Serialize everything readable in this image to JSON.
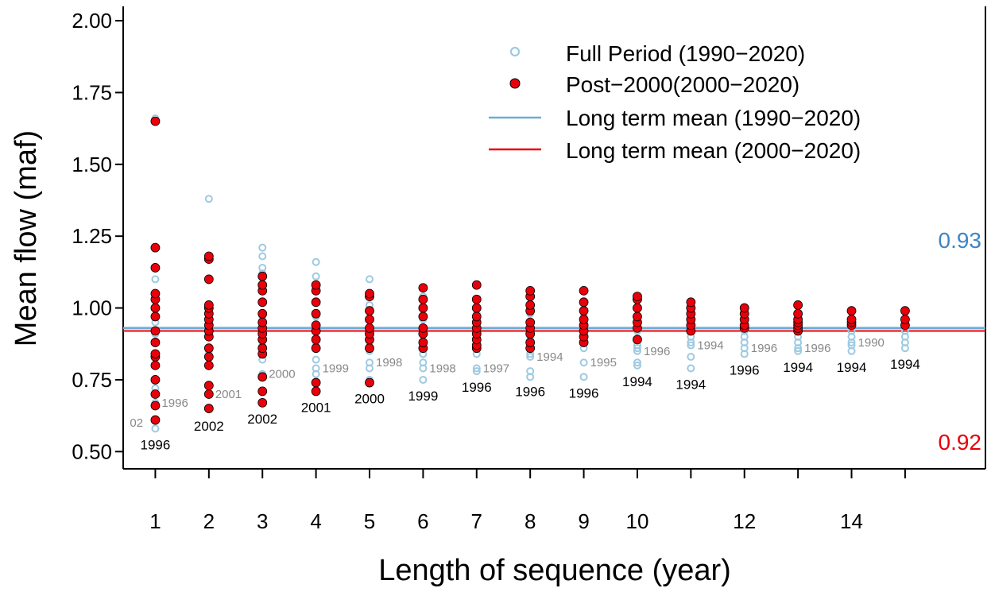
{
  "chart_data": {
    "type": "scatter",
    "xlabel": "Length of sequence (year)",
    "ylabel": "Mean flow (maf)",
    "xlim": [
      0.4,
      16.5
    ],
    "ylim": [
      0.44,
      2.05
    ],
    "x_ticks": [
      "1",
      "2",
      "3",
      "4",
      "5",
      "6",
      "7",
      "8",
      "9",
      "10",
      "12",
      "14"
    ],
    "x_tick_values": [
      1,
      2,
      3,
      4,
      5,
      6,
      7,
      8,
      9,
      10,
      12,
      14
    ],
    "y_ticks": [
      "0.50",
      "0.75",
      "1.00",
      "1.25",
      "1.50",
      "1.75",
      "2.00"
    ],
    "y_tick_values": [
      0.5,
      0.75,
      1.0,
      1.25,
      1.5,
      1.75,
      2.0
    ],
    "legend": [
      {
        "label": "Full Period (1990−2020)",
        "kind": "open-circle",
        "color": "#9ecae1"
      },
      {
        "label": "Post−2000(2000−2020)",
        "kind": "filled-circle",
        "color": "#e8000b"
      },
      {
        "label": "Long term mean (1990−2020)",
        "kind": "line",
        "color": "#6baed6"
      },
      {
        "label": "Long term mean (2000−2020)",
        "kind": "line",
        "color": "#e8000b"
      }
    ],
    "legend_position": "top-right",
    "colors": {
      "full": "#9ecae1",
      "post": "#e8000b",
      "full_mean": "#6baed6",
      "post_mean": "#e8000b",
      "full_mean_text": "#3d85c6"
    },
    "means": {
      "full_period": 0.93,
      "post_2000": 0.92,
      "full_label": "0.93",
      "post_label": "0.92"
    },
    "series": [
      {
        "name": "Full Period (1990−2020)",
        "points": [
          [
            1,
            [
              0.58,
              0.67,
              0.72,
              0.8,
              0.84,
              0.88,
              0.91,
              0.95,
              1.0,
              1.05,
              1.1,
              1.66
            ]
          ],
          [
            2,
            [
              0.7,
              0.8,
              0.85,
              0.9,
              0.95,
              1.0,
              1.17,
              1.38
            ]
          ],
          [
            3,
            [
              0.77,
              0.82,
              0.87,
              0.92,
              0.97,
              1.02,
              1.08,
              1.12,
              1.14,
              1.18,
              1.21
            ]
          ],
          [
            4,
            [
              0.77,
              0.79,
              0.82,
              0.87,
              0.92,
              0.97,
              1.02,
              1.07,
              1.11,
              1.16
            ]
          ],
          [
            5,
            [
              0.75,
              0.79,
              0.81,
              0.85,
              0.88,
              0.92,
              0.96,
              1.01,
              1.05,
              1.1
            ]
          ],
          [
            6,
            [
              0.75,
              0.79,
              0.81,
              0.84,
              0.88,
              0.92,
              0.96,
              1.0,
              1.04
            ]
          ],
          [
            7,
            [
              0.78,
              0.79,
              0.84,
              0.87,
              0.91,
              0.95,
              0.98
            ]
          ],
          [
            8,
            [
              0.76,
              0.78,
              0.83,
              0.84,
              0.87,
              0.9,
              0.94,
              0.98
            ]
          ],
          [
            9,
            [
              0.76,
              0.81,
              0.86,
              0.88,
              0.91,
              0.94,
              0.97
            ]
          ],
          [
            10,
            [
              0.8,
              0.81,
              0.85,
              0.86,
              0.87,
              0.89,
              0.92,
              0.95
            ]
          ],
          [
            11,
            [
              0.79,
              0.83,
              0.87,
              0.88,
              0.9,
              0.93,
              0.95
            ]
          ],
          [
            12,
            [
              0.84,
              0.86,
              0.88,
              0.9,
              0.92,
              0.94
            ]
          ],
          [
            13,
            [
              0.85,
              0.86,
              0.88,
              0.9,
              0.92,
              0.93
            ]
          ],
          [
            14,
            [
              0.85,
              0.87,
              0.88,
              0.9,
              0.92
            ]
          ],
          [
            15,
            [
              0.86,
              0.88,
              0.9,
              0.92
            ]
          ]
        ]
      },
      {
        "name": "Post−2000(2000−2020)",
        "points": [
          [
            1,
            [
              0.61,
              0.66,
              0.7,
              0.75,
              0.8,
              0.83,
              0.84,
              0.88,
              0.92,
              0.97,
              1.0,
              1.03,
              1.05,
              1.14,
              1.21,
              1.65
            ]
          ],
          [
            2,
            [
              0.65,
              0.7,
              0.73,
              0.8,
              0.83,
              0.86,
              0.9,
              0.92,
              0.94,
              0.96,
              0.98,
              1.0,
              1.01,
              1.1,
              1.17,
              1.18
            ]
          ],
          [
            3,
            [
              0.67,
              0.71,
              0.76,
              0.84,
              0.86,
              0.89,
              0.91,
              0.93,
              0.95,
              0.98,
              1.02,
              1.06,
              1.08,
              1.11
            ]
          ],
          [
            4,
            [
              0.71,
              0.74,
              0.86,
              0.89,
              0.92,
              0.94,
              0.98,
              1.02,
              1.06,
              1.08
            ]
          ],
          [
            5,
            [
              0.74,
              0.86,
              0.89,
              0.91,
              0.93,
              0.96,
              0.99,
              1.04,
              1.05
            ]
          ],
          [
            6,
            [
              0.86,
              0.88,
              0.91,
              0.93,
              0.97,
              1.0,
              1.03,
              1.07
            ]
          ],
          [
            7,
            [
              0.86,
              0.87,
              0.89,
              0.91,
              0.93,
              0.95,
              0.97,
              1.0,
              1.03,
              1.08
            ]
          ],
          [
            8,
            [
              0.86,
              0.88,
              0.91,
              0.93,
              0.95,
              0.99,
              1.01,
              1.04,
              1.06
            ]
          ],
          [
            9,
            [
              0.88,
              0.9,
              0.92,
              0.94,
              0.96,
              0.99,
              1.02,
              1.06
            ]
          ],
          [
            10,
            [
              0.89,
              0.93,
              0.95,
              0.97,
              1.0,
              1.03,
              1.04
            ]
          ],
          [
            11,
            [
              0.92,
              0.94,
              0.96,
              0.98,
              1.0,
              1.02
            ]
          ],
          [
            12,
            [
              0.93,
              0.94,
              0.96,
              0.98,
              1.0
            ]
          ],
          [
            13,
            [
              0.92,
              0.93,
              0.94,
              0.95,
              0.96,
              0.98,
              1.01
            ]
          ],
          [
            14,
            [
              0.94,
              0.95,
              0.96,
              0.99
            ]
          ],
          [
            15,
            [
              0.94,
              0.96,
              0.99
            ]
          ]
        ]
      }
    ],
    "annotations_black": [
      {
        "x": 1,
        "y": 0.58,
        "text": "1996"
      },
      {
        "x": 2,
        "y": 0.645,
        "text": "2002"
      },
      {
        "x": 3,
        "y": 0.67,
        "text": "2002"
      },
      {
        "x": 4,
        "y": 0.71,
        "text": "2001"
      },
      {
        "x": 5,
        "y": 0.74,
        "text": "2000"
      },
      {
        "x": 6,
        "y": 0.75,
        "text": "1999"
      },
      {
        "x": 7,
        "y": 0.78,
        "text": "1996"
      },
      {
        "x": 8,
        "y": 0.765,
        "text": "1996"
      },
      {
        "x": 9,
        "y": 0.76,
        "text": "1996"
      },
      {
        "x": 10,
        "y": 0.8,
        "text": "1994"
      },
      {
        "x": 11,
        "y": 0.79,
        "text": "1994"
      },
      {
        "x": 12,
        "y": 0.84,
        "text": "1996"
      },
      {
        "x": 13,
        "y": 0.85,
        "text": "1994"
      },
      {
        "x": 14,
        "y": 0.85,
        "text": "1994"
      },
      {
        "x": 15,
        "y": 0.86,
        "text": "1994"
      }
    ],
    "annotations_gray": [
      {
        "x": 1,
        "y": 0.67,
        "text": "1996"
      },
      {
        "x": 0.95,
        "y": 0.6,
        "text": "02"
      },
      {
        "x": 2,
        "y": 0.7,
        "text": "2001"
      },
      {
        "x": 3,
        "y": 0.77,
        "text": "2000"
      },
      {
        "x": 4,
        "y": 0.79,
        "text": "1999"
      },
      {
        "x": 5,
        "y": 0.81,
        "text": "1998"
      },
      {
        "x": 6,
        "y": 0.79,
        "text": "1998"
      },
      {
        "x": 7,
        "y": 0.79,
        "text": "1997"
      },
      {
        "x": 8,
        "y": 0.83,
        "text": "1994"
      },
      {
        "x": 9,
        "y": 0.81,
        "text": "1995"
      },
      {
        "x": 10,
        "y": 0.85,
        "text": "1996"
      },
      {
        "x": 11,
        "y": 0.87,
        "text": "1994"
      },
      {
        "x": 12,
        "y": 0.86,
        "text": "1996"
      },
      {
        "x": 13,
        "y": 0.86,
        "text": "1996"
      },
      {
        "x": 14,
        "y": 0.88,
        "text": "1990"
      }
    ]
  }
}
